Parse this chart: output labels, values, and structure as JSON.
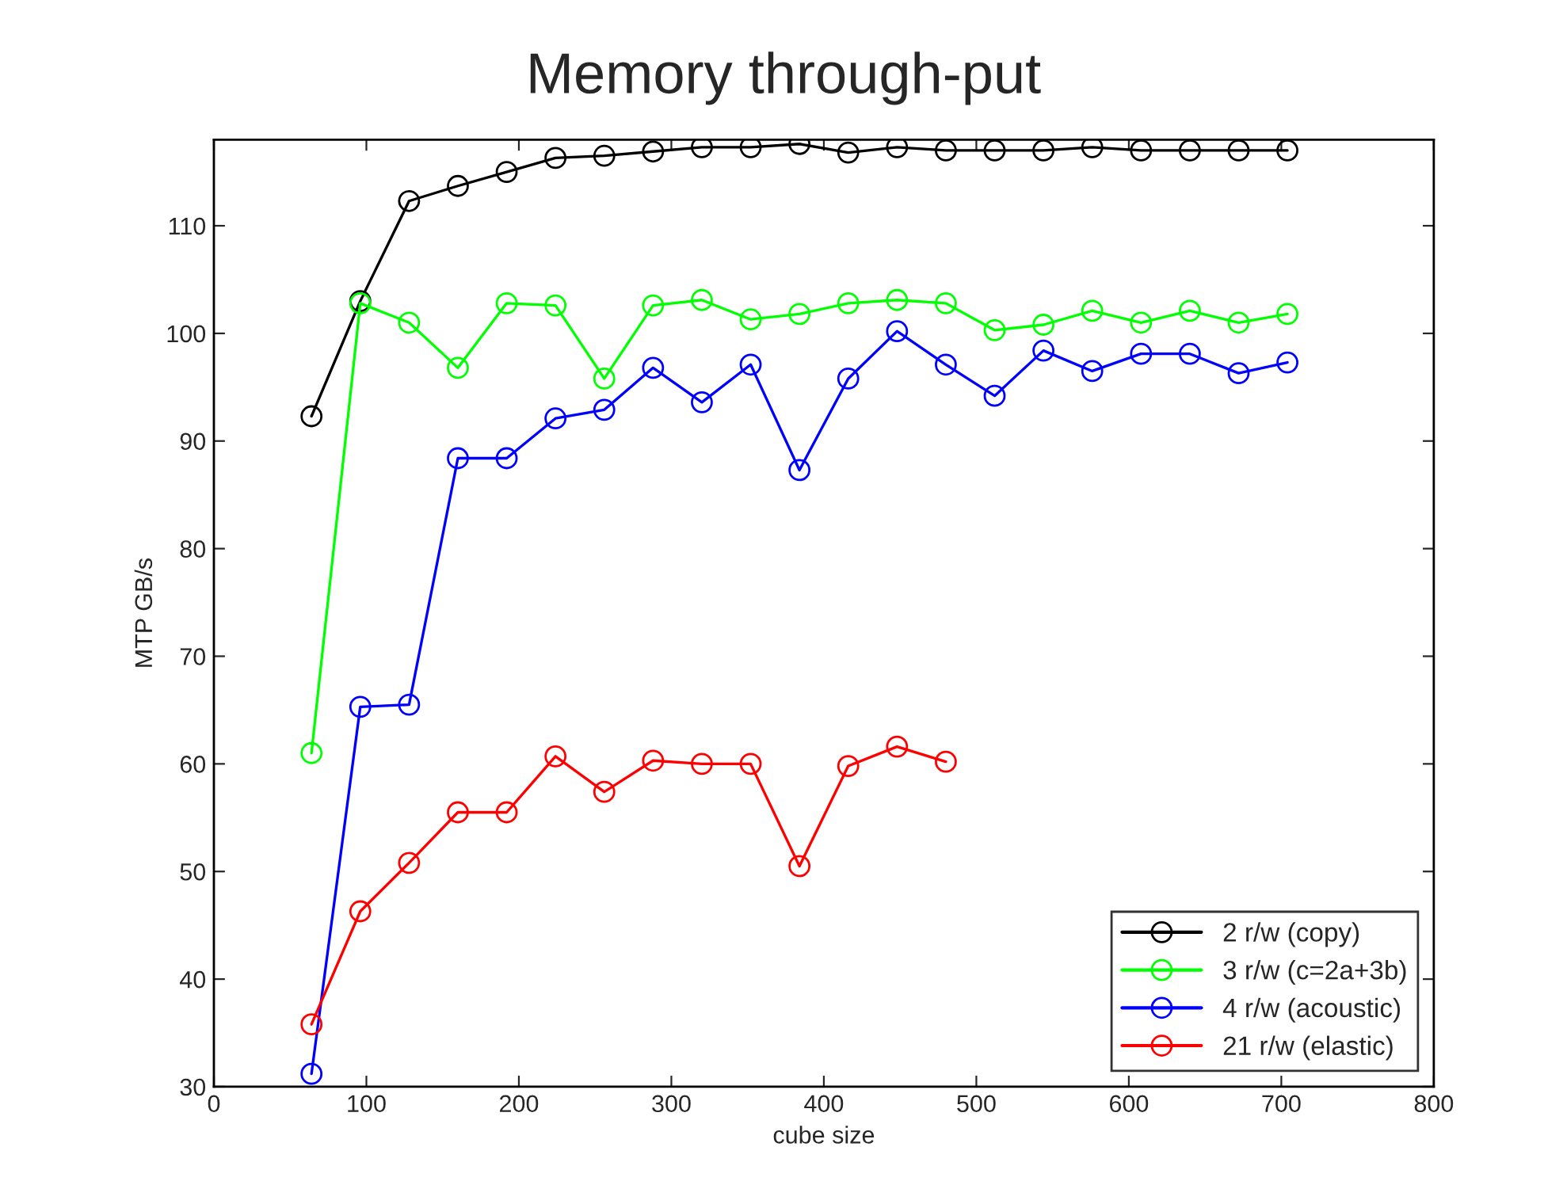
{
  "chart_data": {
    "type": "line",
    "title": "Memory through-put",
    "xlabel": "cube size",
    "ylabel": "MTP GB/s",
    "x": [
      64,
      96,
      128,
      160,
      192,
      224,
      256,
      288,
      320,
      352,
      384,
      416,
      448,
      480,
      512,
      544,
      576,
      608,
      640,
      672,
      704
    ],
    "xlim": [
      0,
      800
    ],
    "xticks": [
      0,
      100,
      200,
      300,
      400,
      500,
      600,
      700,
      800
    ],
    "ylim": [
      30,
      118
    ],
    "yticks": [
      30,
      40,
      50,
      60,
      70,
      80,
      90,
      100,
      110
    ],
    "marker": "circle",
    "line_style": "solid",
    "grid": false,
    "legend": "bottom right",
    "series": [
      {
        "name": "2 r/w (copy)",
        "color": "#000000",
        "values": [
          92.3,
          103,
          112.3,
          113.7,
          115,
          116.3,
          116.5,
          116.9,
          117.3,
          117.3,
          117.6,
          116.8,
          117.3,
          117.0,
          117.0,
          117.0,
          117.3,
          117.0,
          117.0,
          117.0,
          117.0
        ]
      },
      {
        "name": "3 r/w (c=2a+3b)",
        "color": "#00ff00",
        "values": [
          61,
          102.8,
          101,
          96.8,
          102.8,
          102.6,
          95.8,
          102.6,
          103.1,
          101.3,
          101.8,
          102.8,
          103.1,
          102.8,
          100.3,
          100.8,
          102.1,
          101.0,
          102.1,
          101.0,
          101.8
        ]
      },
      {
        "name": "4 r/w (acoustic)",
        "color": "#0000ff",
        "values": [
          31.2,
          65.3,
          65.5,
          88.4,
          88.4,
          92.1,
          92.9,
          96.8,
          93.6,
          97.1,
          87.3,
          95.8,
          100.2,
          97.1,
          94.2,
          98.4,
          96.5,
          98.1,
          98.1,
          96.3,
          97.3
        ]
      },
      {
        "name": "21 r/w (elastic)",
        "color": "#ff0000",
        "x": [
          64,
          96,
          128,
          160,
          192,
          224,
          256,
          288,
          320,
          352,
          384,
          416,
          448,
          480
        ],
        "values": [
          35.8,
          46.3,
          50.8,
          55.5,
          55.5,
          60.7,
          57.4,
          60.3,
          60.0,
          60.0,
          50.5,
          59.8,
          61.6,
          60.2
        ]
      }
    ]
  }
}
